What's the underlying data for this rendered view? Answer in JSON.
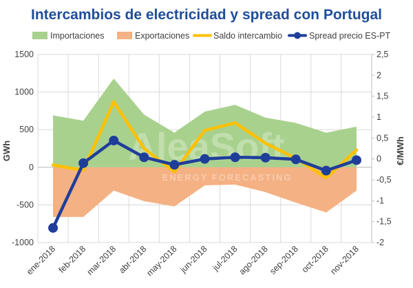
{
  "chart_data": {
    "type": "line",
    "title": "Intercambios de electricidad y spread con Portugal",
    "categories": [
      "ene-2018",
      "feb-2018",
      "mar-2018",
      "abr-2018",
      "may-2018",
      "jun-2018",
      "jul-2018",
      "ago-2018",
      "sep-2018",
      "oct-2018",
      "nov-2018"
    ],
    "ylabel": "GWh",
    "y2label": "€/MWh",
    "ylim": [
      -1000,
      1500
    ],
    "y2lim": [
      -2,
      2.5
    ],
    "yticks": [
      "-1000",
      "-500",
      "0",
      "500",
      "1000",
      "1500"
    ],
    "y2ticks": [
      "-2",
      "-1,5",
      "-1",
      "-0,5",
      "0",
      "0,5",
      "1",
      "1,5",
      "2",
      "2,5"
    ],
    "grid": true,
    "legend_position": "top",
    "series": [
      {
        "name": "Importaciones",
        "kind": "area",
        "axis": "left",
        "color": "#a9d18e",
        "values": [
          690,
          620,
          1180,
          700,
          460,
          740,
          830,
          660,
          590,
          460,
          540
        ]
      },
      {
        "name": "Exportaciones",
        "kind": "area",
        "axis": "left",
        "color": "#f4b183",
        "values": [
          -660,
          -660,
          -310,
          -450,
          -520,
          -240,
          -230,
          -330,
          -470,
          -600,
          -310
        ]
      },
      {
        "name": "Saldo intercambio",
        "kind": "line",
        "axis": "left",
        "color": "#ffc000",
        "values": [
          30,
          -40,
          870,
          250,
          -60,
          490,
          590,
          320,
          120,
          -140,
          230
        ]
      },
      {
        "name": "Spread precio ES-PT",
        "kind": "line-markers",
        "axis": "right",
        "color": "#1f3e9a",
        "values": [
          -1.65,
          -0.1,
          0.44,
          0.04,
          -0.14,
          0.0,
          0.04,
          0.03,
          -0.01,
          -0.28,
          -0.03
        ]
      }
    ]
  },
  "watermark": {
    "main": "AleaSoft",
    "sub": "ENERGY FORECASTING"
  }
}
